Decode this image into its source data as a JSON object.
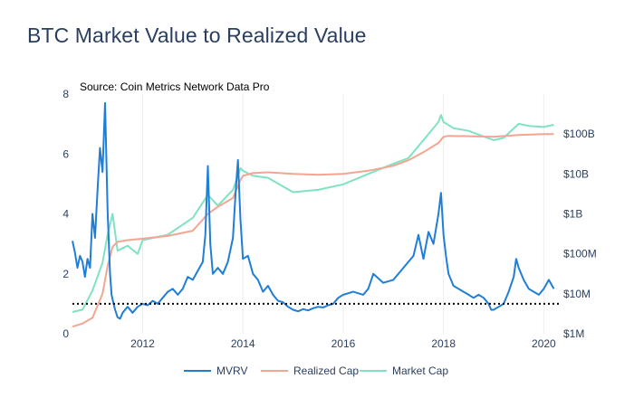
{
  "title": "BTC Market Value to Realized Value",
  "colors": {
    "mvrv": "#1f7ed6",
    "realized_cap": "#f4a592",
    "market_cap": "#7fe3c0",
    "grid": "#ebeef2",
    "reference": "#000000"
  },
  "chart_data": {
    "type": "line",
    "title": "BTC Market Value to Realized Value",
    "annotation": "Source: Coin Metrics Network Data Pro",
    "xlim": [
      2010.6,
      2020.3
    ],
    "x_ticks": [
      2012,
      2014,
      2016,
      2018,
      2020
    ],
    "x_tick_labels": [
      "2012",
      "2014",
      "2016",
      "2018",
      "2020"
    ],
    "y_left": {
      "range": [
        0,
        8
      ],
      "ticks": [
        0,
        2,
        4,
        6,
        8
      ],
      "tick_labels": [
        "0",
        "2",
        "4",
        "6",
        "8"
      ]
    },
    "y_right": {
      "scale": "log",
      "range": [
        1000000,
        1000000000000
      ],
      "ticks": [
        1000000,
        10000000,
        100000000,
        1000000000,
        10000000000,
        100000000000
      ],
      "tick_labels": [
        "$1M",
        "$10M",
        "$100M",
        "$1B",
        "$10B",
        "$100B"
      ]
    },
    "reference_line": {
      "axis": "y_left",
      "value": 1,
      "style": "dotted"
    },
    "grid": "vertical",
    "legend_position": "bottom",
    "series": [
      {
        "name": "MVRV",
        "axis": "y_left",
        "x": [
          2010.6,
          2010.65,
          2010.7,
          2010.75,
          2010.8,
          2010.85,
          2010.9,
          2010.95,
          2011.0,
          2011.05,
          2011.1,
          2011.15,
          2011.2,
          2011.25,
          2011.3,
          2011.35,
          2011.38,
          2011.42,
          2011.45,
          2011.5,
          2011.55,
          2011.6,
          2011.7,
          2011.8,
          2011.9,
          2012.0,
          2012.1,
          2012.2,
          2012.3,
          2012.4,
          2012.5,
          2012.6,
          2012.7,
          2012.8,
          2012.9,
          2013.0,
          2013.1,
          2013.2,
          2013.25,
          2013.3,
          2013.35,
          2013.4,
          2013.5,
          2013.6,
          2013.7,
          2013.8,
          2013.85,
          2013.9,
          2013.95,
          2014.0,
          2014.1,
          2014.2,
          2014.3,
          2014.4,
          2014.5,
          2014.6,
          2014.7,
          2014.8,
          2014.9,
          2015.0,
          2015.1,
          2015.2,
          2015.3,
          2015.4,
          2015.5,
          2015.6,
          2015.7,
          2015.8,
          2015.9,
          2016.0,
          2016.2,
          2016.4,
          2016.5,
          2016.6,
          2016.8,
          2017.0,
          2017.2,
          2017.4,
          2017.5,
          2017.6,
          2017.7,
          2017.8,
          2017.9,
          2017.95,
          2018.0,
          2018.05,
          2018.1,
          2018.2,
          2018.3,
          2018.4,
          2018.5,
          2018.6,
          2018.7,
          2018.8,
          2018.9,
          2018.95,
          2019.0,
          2019.1,
          2019.2,
          2019.3,
          2019.4,
          2019.45,
          2019.5,
          2019.6,
          2019.7,
          2019.8,
          2019.9,
          2020.0,
          2020.1,
          2020.2
        ],
        "y": [
          3.1,
          2.7,
          2.2,
          2.6,
          2.4,
          1.9,
          2.5,
          2.2,
          4.0,
          3.2,
          4.8,
          6.2,
          5.4,
          7.7,
          4.1,
          2.0,
          1.3,
          1.0,
          0.8,
          0.55,
          0.5,
          0.7,
          0.9,
          0.7,
          0.9,
          1.0,
          0.95,
          1.1,
          1.0,
          1.2,
          1.4,
          1.5,
          1.3,
          1.5,
          1.9,
          1.8,
          2.1,
          2.4,
          3.3,
          5.6,
          3.0,
          2.0,
          2.2,
          2.0,
          2.4,
          3.2,
          4.6,
          5.8,
          3.8,
          2.5,
          2.6,
          2.0,
          1.8,
          1.4,
          1.6,
          1.3,
          1.1,
          1.05,
          0.9,
          0.8,
          0.75,
          0.82,
          0.78,
          0.85,
          0.9,
          0.88,
          0.95,
          1.0,
          1.2,
          1.3,
          1.4,
          1.3,
          1.5,
          2.0,
          1.7,
          1.8,
          2.2,
          2.6,
          3.3,
          2.5,
          3.4,
          3.0,
          4.0,
          4.7,
          3.3,
          2.6,
          2.0,
          1.6,
          1.5,
          1.4,
          1.3,
          1.2,
          1.3,
          1.2,
          1.0,
          0.8,
          0.8,
          0.9,
          1.0,
          1.4,
          1.9,
          2.5,
          2.2,
          1.8,
          1.5,
          1.4,
          1.3,
          1.5,
          1.8,
          1.5
        ]
      },
      {
        "name": "Realized Cap",
        "axis": "y_right",
        "x": [
          2010.6,
          2010.8,
          2011.0,
          2011.2,
          2011.3,
          2011.4,
          2011.5,
          2011.7,
          2012.0,
          2012.5,
          2013.0,
          2013.3,
          2013.5,
          2013.8,
          2013.95,
          2014.0,
          2014.2,
          2014.5,
          2015.0,
          2015.5,
          2016.0,
          2016.5,
          2017.0,
          2017.3,
          2017.6,
          2017.9,
          2018.0,
          2018.1,
          2018.5,
          2019.0,
          2019.5,
          2020.0,
          2020.2
        ],
        "y": [
          1500000,
          1800000,
          2500000,
          10000000,
          50000000,
          150000000,
          200000000,
          220000000,
          240000000,
          280000000,
          380000000,
          1000000000,
          1500000000,
          2500000000,
          7000000000,
          9000000000,
          10500000000,
          11000000000,
          10000000000,
          9500000000,
          10000000000,
          12000000000,
          16000000000,
          22000000000,
          35000000000,
          60000000000,
          85000000000,
          90000000000,
          88000000000,
          85000000000,
          95000000000,
          100000000000,
          100000000000
        ]
      },
      {
        "name": "Market Cap",
        "axis": "y_right",
        "x": [
          2010.6,
          2010.8,
          2011.0,
          2011.2,
          2011.3,
          2011.4,
          2011.5,
          2011.7,
          2011.9,
          2012.0,
          2012.5,
          2013.0,
          2013.3,
          2013.5,
          2013.8,
          2013.95,
          2014.0,
          2014.2,
          2014.5,
          2015.0,
          2015.5,
          2016.0,
          2016.5,
          2017.0,
          2017.3,
          2017.6,
          2017.9,
          2017.95,
          2018.0,
          2018.2,
          2018.5,
          2019.0,
          2019.2,
          2019.5,
          2019.7,
          2020.0,
          2020.2
        ],
        "y": [
          3500000,
          4000000,
          12000000,
          60000000,
          300000000,
          1000000000,
          120000000,
          160000000,
          100000000,
          220000000,
          300000000,
          800000000,
          3000000000,
          1600000000,
          4000000000,
          14000000000,
          12000000000,
          9000000000,
          8000000000,
          3500000000,
          4000000000,
          5500000000,
          10000000000,
          18000000000,
          25000000000,
          70000000000,
          200000000000,
          300000000000,
          200000000000,
          140000000000,
          120000000000,
          70000000000,
          80000000000,
          180000000000,
          160000000000,
          150000000000,
          170000000000
        ]
      }
    ]
  },
  "legend": {
    "items": [
      {
        "key": "mvrv",
        "label": "MVRV"
      },
      {
        "key": "realized_cap",
        "label": "Realized Cap"
      },
      {
        "key": "market_cap",
        "label": "Market Cap"
      }
    ]
  }
}
